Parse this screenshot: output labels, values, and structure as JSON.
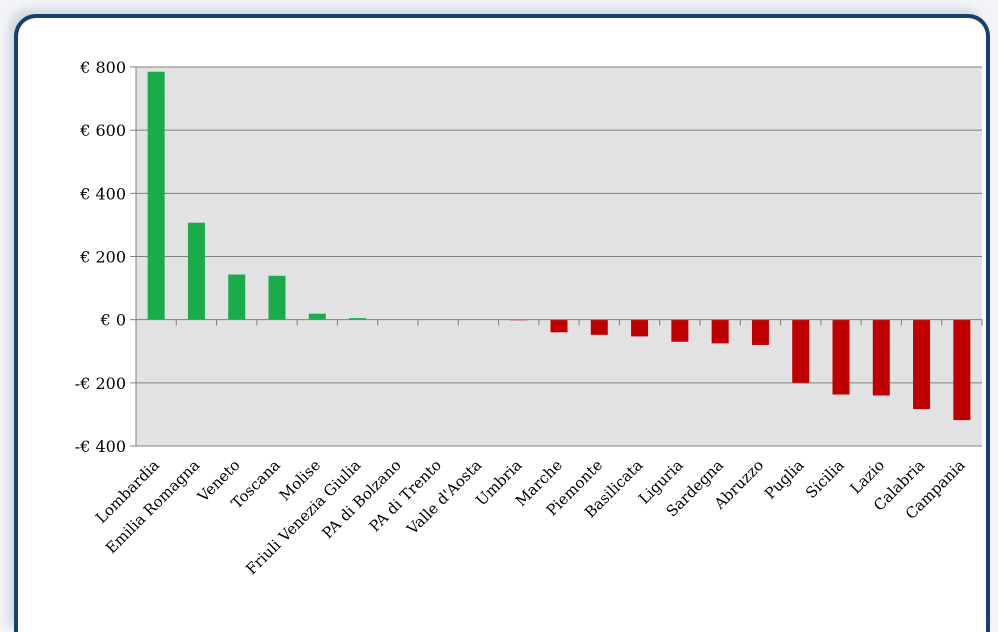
{
  "chart_data": {
    "type": "bar",
    "categories": [
      "Lombardia",
      "Emilia Romagna",
      "Veneto",
      "Toscana",
      "Molise",
      "Friuli Venezia Giulia",
      "PA di Bolzano",
      "PA di Trento",
      "Valle d'Aosta",
      "Umbria",
      "Marche",
      "Piemonte",
      "Basilicata",
      "Liguria",
      "Sardegna",
      "Abruzzo",
      "Puglia",
      "Sicilia",
      "Lazio",
      "Calabria",
      "Campania"
    ],
    "values": [
      785,
      307,
      143,
      139,
      19,
      5,
      0,
      0,
      0,
      -2,
      -40,
      -48,
      -53,
      -70,
      -75,
      -80,
      -200,
      -237,
      -240,
      -283,
      -318
    ],
    "ylim": [
      -400,
      800
    ],
    "yticks": [
      800,
      600,
      400,
      200,
      0,
      -200,
      -400
    ],
    "ytick_labels": [
      "€ 800",
      "€ 600",
      "€ 400",
      "€ 200",
      "€ 0",
      "-€ 200",
      "-€ 400"
    ],
    "grid": true,
    "colors": {
      "positive": "#1aab4b",
      "negative": "#c00000",
      "plot_bg": "#e2e2e2",
      "grid": "#808080"
    }
  }
}
